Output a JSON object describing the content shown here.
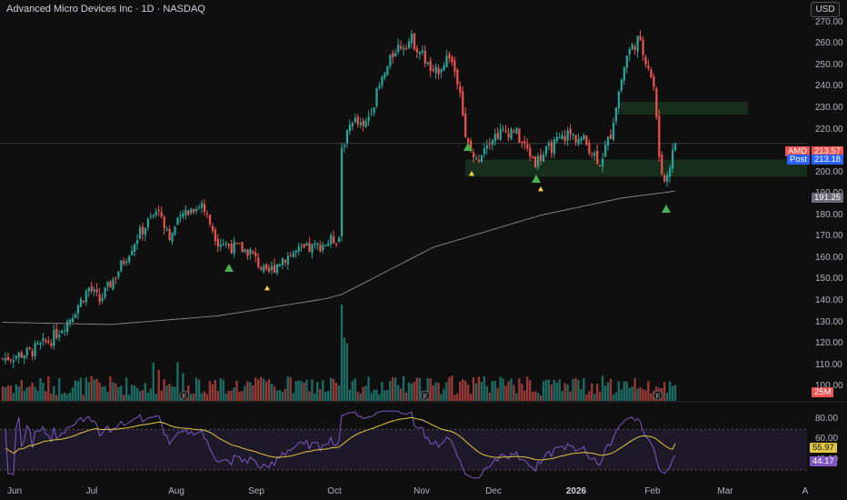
{
  "title": "Advanced Micro Devices Inc · 1D · NASDAQ",
  "currency": "USD",
  "price_axis": {
    "ticks": [
      "270.00",
      "260.00",
      "250.00",
      "240.00",
      "230.00",
      "220.00",
      "210.00",
      "200.00",
      "190.00",
      "180.00",
      "170.00",
      "160.00",
      "150.00",
      "140.00",
      "130.00",
      "120.00",
      "110.00",
      "100.00"
    ],
    "min": 95,
    "max": 272
  },
  "time_axis": {
    "labels": [
      {
        "text": "Jun",
        "bold": false
      },
      {
        "text": "Jul",
        "bold": false
      },
      {
        "text": "Aug",
        "bold": false
      },
      {
        "text": "Sep",
        "bold": false
      },
      {
        "text": "Oct",
        "bold": false
      },
      {
        "text": "Nov",
        "bold": false
      },
      {
        "text": "Dec",
        "bold": false
      },
      {
        "text": "2026",
        "bold": true
      },
      {
        "text": "Feb",
        "bold": false
      },
      {
        "text": "Mar",
        "bold": false
      },
      {
        "text": "A",
        "bold": false
      }
    ]
  },
  "tags": {
    "last_symbol": "AMD",
    "last_price": "213.57",
    "post_label": "Post",
    "post_price": "213.18",
    "ma_value": "191.25",
    "volume": "25M",
    "rsi_ma": "55.97",
    "rsi": "44.17"
  },
  "rsi_axis": {
    "ticks": [
      "80.00",
      "60.00",
      "40.00"
    ]
  },
  "colors": {
    "up": "#26a69a",
    "down": "#ef5350",
    "ma": "#8a8a8a",
    "rsi_line": "#7e57c2",
    "rsi_ma": "#e2c640",
    "zone": "#1b3a22",
    "background": "#0f0f0f"
  },
  "icons": [
    "earnings-marker-icon",
    "buy-signal-triangle-icon",
    "sell-signal-triangle-icon"
  ],
  "chart_data": {
    "type": "candlestick",
    "series": [
      {
        "name": "AMD",
        "trend_anchors": [
          [
            0,
            113
          ],
          [
            10,
            116
          ],
          [
            18,
            122
          ],
          [
            25,
            132
          ],
          [
            32,
            146
          ],
          [
            36,
            140
          ],
          [
            42,
            152
          ],
          [
            50,
            170
          ],
          [
            58,
            183
          ],
          [
            62,
            170
          ],
          [
            68,
            182
          ],
          [
            74,
            185
          ],
          [
            80,
            168
          ],
          [
            86,
            165
          ],
          [
            92,
            163
          ],
          [
            98,
            152
          ],
          [
            104,
            160
          ],
          [
            110,
            163
          ],
          [
            116,
            165
          ],
          [
            122,
            168
          ],
          [
            125,
            170
          ],
          [
            126,
            212
          ],
          [
            130,
            225
          ],
          [
            134,
            220
          ],
          [
            140,
            240
          ],
          [
            146,
            258
          ],
          [
            152,
            262
          ],
          [
            156,
            255
          ],
          [
            160,
            245
          ],
          [
            166,
            255
          ],
          [
            170,
            240
          ],
          [
            172,
            215
          ],
          [
            176,
            205
          ],
          [
            180,
            215
          ],
          [
            184,
            218
          ],
          [
            190,
            220
          ],
          [
            194,
            212
          ],
          [
            198,
            205
          ],
          [
            204,
            212
          ],
          [
            210,
            218
          ],
          [
            216,
            215
          ],
          [
            222,
            205
          ],
          [
            226,
            218
          ],
          [
            228,
            232
          ],
          [
            232,
            255
          ],
          [
            236,
            262
          ],
          [
            240,
            250
          ],
          [
            242,
            240
          ],
          [
            244,
            208
          ],
          [
            246,
            195
          ],
          [
            250,
            213.57
          ]
        ]
      },
      {
        "name": "SMA",
        "trend_anchors": [
          [
            0,
            130
          ],
          [
            40,
            129
          ],
          [
            80,
            133
          ],
          [
            120,
            141
          ],
          [
            126,
            143
          ],
          [
            160,
            165
          ],
          [
            200,
            180
          ],
          [
            230,
            188
          ],
          [
            250,
            191.25
          ]
        ]
      }
    ],
    "indicators": {
      "volume_last": "25M",
      "rsi": 44.17,
      "rsi_ma": 55.97,
      "rsi_levels": [
        70,
        30
      ]
    }
  }
}
